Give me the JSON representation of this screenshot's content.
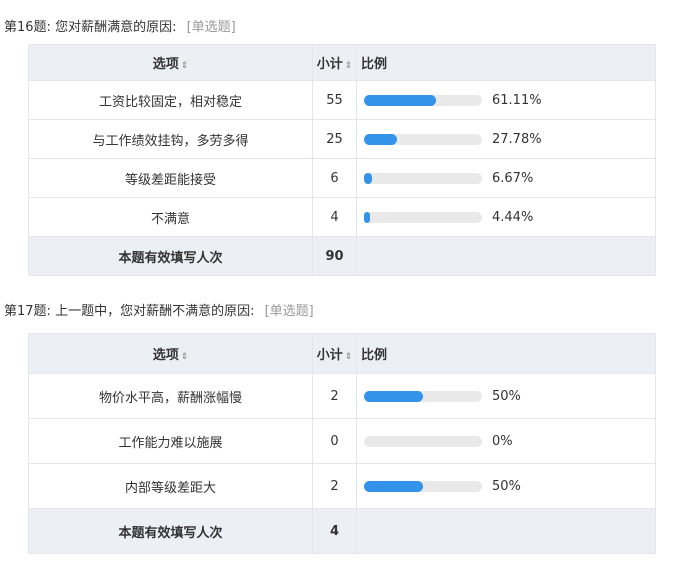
{
  "q16": {
    "number": "第16题:",
    "text": "您对薪酬满意的原因:",
    "type": "[单选题]",
    "headers": {
      "option": "选项",
      "count": "小计",
      "ratio": "比例",
      "sort_icon": "⇕"
    },
    "rows": [
      {
        "option": "工资比较固定，相对稳定",
        "count": "55",
        "percent": "61.11%",
        "fraction": 0.6111
      },
      {
        "option": "与工作绩效挂钩，多劳多得",
        "count": "25",
        "percent": "27.78%",
        "fraction": 0.2778
      },
      {
        "option": "等级差距能接受",
        "count": "6",
        "percent": "6.67%",
        "fraction": 0.0667
      },
      {
        "option": "不满意",
        "count": "4",
        "percent": "4.44%",
        "fraction": 0.0444
      }
    ],
    "total_label": "本题有效填写人次",
    "total_value": "90"
  },
  "q17": {
    "number": "第17题:",
    "text": "上一题中，您对薪酬不满意的原因:",
    "type": "[单选题]",
    "headers": {
      "option": "选项",
      "count": "小计",
      "ratio": "比例",
      "sort_icon": "⇕"
    },
    "rows": [
      {
        "option": "物价水平高，薪酬涨幅慢",
        "count": "2",
        "percent": "50%",
        "fraction": 0.5
      },
      {
        "option": "工作能力难以施展",
        "count": "0",
        "percent": "0%",
        "fraction": 0
      },
      {
        "option": "内部等级差距大",
        "count": "2",
        "percent": "50%",
        "fraction": 0.5
      }
    ],
    "total_label": "本题有效填写人次",
    "total_value": "4"
  },
  "colors": {
    "bar_fill": "#3293e8",
    "bar_track": "#e9e9e9",
    "header_bg": "#eceff4"
  }
}
